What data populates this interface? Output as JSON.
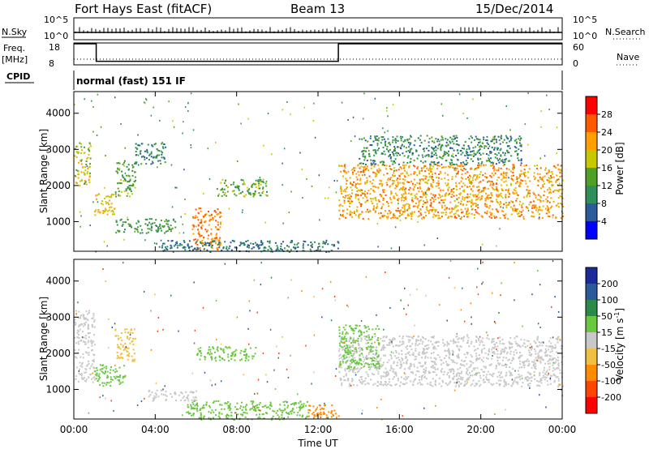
{
  "header": {
    "station": "Fort Hays East (fitACF)",
    "beam": "Beam 13",
    "date": "15/Dec/2014"
  },
  "panels": {
    "nsky_label": "N.Sky",
    "nsky_ticks": [
      "10^5",
      "10^0"
    ],
    "nsearch_label": "N.Search",
    "nsearch_ticks": [
      "10^5",
      "10^0"
    ],
    "freq_label": "Freq.",
    "freq_unit": "[MHz]",
    "freq_ticks": [
      "18",
      "8"
    ],
    "nave_label": "Nave",
    "nave_ticks": [
      "60",
      "0"
    ],
    "cpid_label": "CPID",
    "cpid_value": "normal (fast) 151 IF"
  },
  "chart_data": [
    {
      "type": "heatmap",
      "title": "",
      "xlabel": "Time UT",
      "ylabel": "Slant Range [km]",
      "x_ticks": [
        "00:00",
        "04:00",
        "08:00",
        "12:00",
        "16:00",
        "20:00",
        "00:00"
      ],
      "xlim": [
        0,
        24
      ],
      "y_ticks": [
        "1000",
        "2000",
        "3000",
        "4000"
      ],
      "ylim": [
        180,
        4600
      ],
      "colorbar": {
        "label": "Power [dB]",
        "ticks": [
          "28",
          "24",
          "20",
          "16",
          "12",
          "8",
          "4"
        ],
        "colors": [
          "#ff0000",
          "#ff5a00",
          "#ffa000",
          "#c8c800",
          "#50a028",
          "#2f8f5a",
          "#2a5a9a",
          "#0000ff"
        ]
      },
      "frequency_mhz_segments": [
        {
          "start_ut": 0.0,
          "end_ut": 1.1,
          "value": 18
        },
        {
          "start_ut": 1.1,
          "end_ut": 13.0,
          "value": 10
        },
        {
          "start_ut": 13.0,
          "end_ut": 24.0,
          "value": 18
        }
      ],
      "echo_regions": [
        {
          "t0": 0.0,
          "t1": 0.8,
          "r0": 2000,
          "r1": 3200,
          "power_db": 16
        },
        {
          "t0": 1.0,
          "t1": 2.0,
          "r0": 1200,
          "r1": 1800,
          "power_db": 18
        },
        {
          "t0": 2.0,
          "t1": 3.0,
          "r0": 1700,
          "r1": 2700,
          "power_db": 12
        },
        {
          "t0": 3.0,
          "t1": 4.5,
          "r0": 2600,
          "r1": 3200,
          "power_db": 8
        },
        {
          "t0": 2.0,
          "t1": 5.0,
          "r0": 700,
          "r1": 1100,
          "power_db": 10
        },
        {
          "t0": 5.8,
          "t1": 7.2,
          "r0": 200,
          "r1": 1400,
          "power_db": 22
        },
        {
          "t0": 7.0,
          "t1": 9.5,
          "r0": 1700,
          "r1": 2200,
          "power_db": 12
        },
        {
          "t0": 4.0,
          "t1": 13.0,
          "r0": 180,
          "r1": 500,
          "power_db": 6
        },
        {
          "t0": 13.0,
          "t1": 24.0,
          "r0": 1100,
          "r1": 2600,
          "power_db": 20
        },
        {
          "t0": 14.0,
          "t1": 22.0,
          "r0": 2600,
          "r1": 3400,
          "power_db": 8
        }
      ]
    },
    {
      "type": "heatmap",
      "title": "",
      "xlabel": "Time UT",
      "ylabel": "Slant Range [km]",
      "x_ticks": [
        "00:00",
        "04:00",
        "08:00",
        "12:00",
        "16:00",
        "20:00",
        "00:00"
      ],
      "xlim": [
        0,
        24
      ],
      "y_ticks": [
        "1000",
        "2000",
        "3000",
        "4000"
      ],
      "ylim": [
        180,
        4600
      ],
      "colorbar": {
        "label": "Velocity",
        "unit": "[m s",
        "unit_exp": "-1",
        "unit_close": "]",
        "ticks": [
          "200",
          "100",
          "50",
          "15",
          "-15",
          "-50",
          "-100",
          "-200"
        ],
        "colors": [
          "#1a2a9a",
          "#2a5a9a",
          "#2a8a4a",
          "#6ac840",
          "#c8c8c8",
          "#f0c040",
          "#ff8c00",
          "#ff4500",
          "#ff0000"
        ]
      },
      "echo_regions": [
        {
          "t0": 0.0,
          "t1": 1.0,
          "r0": 1200,
          "r1": 3200,
          "velocity_ms": 0
        },
        {
          "t0": 1.0,
          "t1": 2.5,
          "r0": 1100,
          "r1": 1700,
          "velocity_ms": 30
        },
        {
          "t0": 2.0,
          "t1": 3.0,
          "r0": 1800,
          "r1": 2700,
          "velocity_ms": -30
        },
        {
          "t0": 3.5,
          "t1": 6.0,
          "r0": 700,
          "r1": 1000,
          "velocity_ms": 0
        },
        {
          "t0": 6.0,
          "t1": 9.0,
          "r0": 1800,
          "r1": 2200,
          "velocity_ms": 30
        },
        {
          "t0": 5.5,
          "t1": 11.5,
          "r0": 180,
          "r1": 700,
          "velocity_ms": 30
        },
        {
          "t0": 11.5,
          "t1": 13.0,
          "r0": 180,
          "r1": 600,
          "velocity_ms": -60
        },
        {
          "t0": 13.0,
          "t1": 24.0,
          "r0": 1100,
          "r1": 2500,
          "velocity_ms": 0
        },
        {
          "t0": 13.0,
          "t1": 15.0,
          "r0": 1600,
          "r1": 2800,
          "velocity_ms": 30
        }
      ]
    }
  ]
}
